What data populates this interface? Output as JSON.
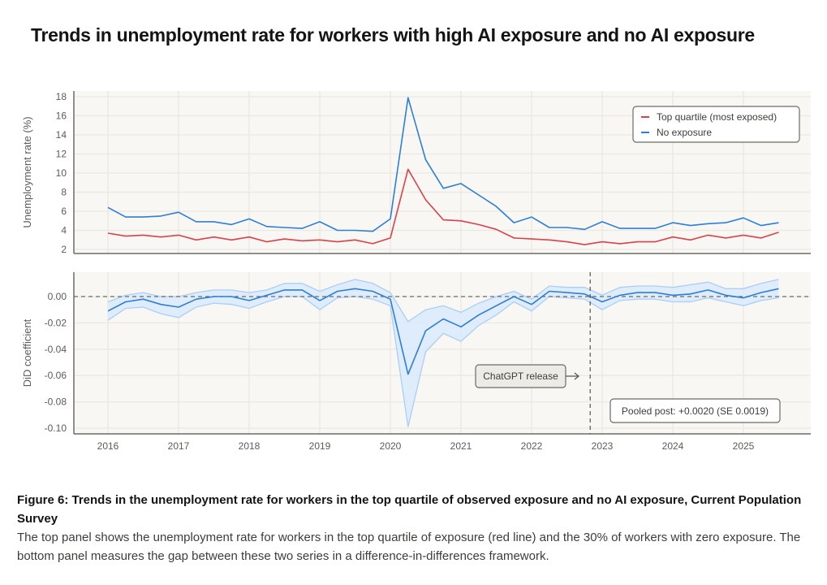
{
  "page": {
    "title": "Trends in unemployment rate for workers with high AI exposure and no AI exposure"
  },
  "caption": {
    "title": "Figure 6: Trends in the unemployment rate for workers in the top quartile of observed exposure and no AI exposure, Current Population Survey",
    "body": "The top panel shows the unemployment rate for workers in the top quartile of exposure (red line) and the 30% of workers with zero exposure. The bottom panel measures the gap between these two series in a difference-in-differences framework."
  },
  "colors": {
    "red": "#d9424a",
    "blue": "#2d7fd6",
    "band": "#dbeafb",
    "band_edge": "#a9cff5",
    "plot_bg": "#f8f7f4",
    "grid": "#ebe8e1",
    "axis": "#6b6b66",
    "tick_text": "#5b5b57"
  },
  "chart_data": [
    {
      "type": "line",
      "panel": "top",
      "title": "",
      "xlabel": "",
      "ylabel": "Unemployment rate (%)",
      "ylim": [
        2,
        18
      ],
      "yticks": [
        2,
        4,
        6,
        8,
        10,
        12,
        14,
        16,
        18
      ],
      "xlim": [
        2015.6,
        2026.0
      ],
      "grid": true,
      "legend": "top-right",
      "x": [
        2016.0,
        2016.25,
        2016.5,
        2016.75,
        2017.0,
        2017.25,
        2017.5,
        2017.75,
        2018.0,
        2018.25,
        2018.5,
        2018.75,
        2019.0,
        2019.25,
        2019.5,
        2019.75,
        2020.0,
        2020.25,
        2020.5,
        2020.75,
        2021.0,
        2021.25,
        2021.5,
        2021.75,
        2022.0,
        2022.25,
        2022.5,
        2022.75,
        2023.0,
        2023.25,
        2023.5,
        2023.75,
        2024.0,
        2024.25,
        2024.5,
        2024.75,
        2025.0,
        2025.25,
        2025.5
      ],
      "series": [
        {
          "name": "Top quartile (most exposed)",
          "color_key": "red",
          "values": [
            3.7,
            3.4,
            3.5,
            3.3,
            3.5,
            3.0,
            3.3,
            3.0,
            3.3,
            2.8,
            3.1,
            2.9,
            3.0,
            2.8,
            3.0,
            2.6,
            3.2,
            10.4,
            7.2,
            5.1,
            5.0,
            4.6,
            4.1,
            3.2,
            3.1,
            3.0,
            2.8,
            2.5,
            2.8,
            2.6,
            2.8,
            2.8,
            3.3,
            3.0,
            3.5,
            3.2,
            3.5,
            3.2,
            3.8
          ]
        },
        {
          "name": "No exposure",
          "color_key": "blue",
          "values": [
            6.4,
            5.4,
            5.4,
            5.5,
            5.9,
            4.9,
            4.9,
            4.6,
            5.2,
            4.4,
            4.3,
            4.2,
            4.9,
            4.0,
            4.0,
            3.9,
            5.2,
            17.9,
            11.4,
            8.4,
            8.9,
            7.7,
            6.5,
            4.8,
            5.4,
            4.3,
            4.3,
            4.1,
            4.9,
            4.2,
            4.2,
            4.2,
            4.8,
            4.5,
            4.7,
            4.8,
            5.3,
            4.5,
            4.8
          ]
        }
      ]
    },
    {
      "type": "line",
      "panel": "bottom",
      "title": "",
      "xlabel": "",
      "ylabel": "DiD coefficient",
      "ylim": [
        -0.1,
        0.02
      ],
      "yticks": [
        0.0,
        -0.02,
        -0.04,
        -0.06,
        -0.08,
        -0.1
      ],
      "ytick_labels": [
        "0.00",
        "-0.02",
        "-0.04",
        "-0.06",
        "-0.08",
        "-0.10"
      ],
      "xlim": [
        2015.6,
        2026.0
      ],
      "xticks": [
        2016,
        2017,
        2018,
        2019,
        2020,
        2021,
        2022,
        2023,
        2024,
        2025
      ],
      "grid": true,
      "reference_line_y": 0.0,
      "x": [
        2016.0,
        2016.25,
        2016.5,
        2016.75,
        2017.0,
        2017.25,
        2017.5,
        2017.75,
        2018.0,
        2018.25,
        2018.5,
        2018.75,
        2019.0,
        2019.25,
        2019.5,
        2019.75,
        2020.0,
        2020.25,
        2020.5,
        2020.75,
        2021.0,
        2021.25,
        2021.5,
        2021.75,
        2022.0,
        2022.25,
        2022.5,
        2022.75,
        2023.0,
        2023.25,
        2023.5,
        2023.75,
        2024.0,
        2024.25,
        2024.5,
        2024.75,
        2025.0,
        2025.25,
        2025.5
      ],
      "series": [
        {
          "name": "DiD coefficient",
          "color_key": "blue",
          "values": [
            -0.011,
            -0.004,
            -0.002,
            -0.006,
            -0.008,
            -0.002,
            0.0,
            0.0,
            -0.003,
            0.001,
            0.005,
            0.005,
            -0.003,
            0.004,
            0.006,
            0.004,
            -0.002,
            -0.059,
            -0.026,
            -0.017,
            -0.023,
            -0.014,
            -0.007,
            0.0,
            -0.006,
            0.004,
            0.003,
            0.002,
            -0.004,
            0.001,
            0.003,
            0.003,
            0.001,
            0.002,
            0.005,
            0.001,
            -0.001,
            0.003,
            0.006
          ],
          "ci_upper": [
            -0.004,
            0.001,
            0.003,
            0.0,
            0.0,
            0.003,
            0.005,
            0.005,
            0.003,
            0.005,
            0.01,
            0.01,
            0.004,
            0.009,
            0.013,
            0.01,
            0.003,
            -0.019,
            -0.01,
            -0.007,
            -0.012,
            -0.005,
            0.0,
            0.004,
            -0.002,
            0.008,
            0.007,
            0.007,
            0.001,
            0.007,
            0.008,
            0.008,
            0.007,
            0.009,
            0.011,
            0.006,
            0.006,
            0.01,
            0.013
          ],
          "ci_lower": [
            -0.018,
            -0.009,
            -0.008,
            -0.013,
            -0.016,
            -0.008,
            -0.005,
            -0.006,
            -0.009,
            -0.004,
            0.0,
            0.0,
            -0.01,
            -0.001,
            0.0,
            -0.002,
            -0.007,
            -0.099,
            -0.042,
            -0.028,
            -0.034,
            -0.022,
            -0.014,
            -0.004,
            -0.011,
            0.0,
            -0.001,
            -0.002,
            -0.01,
            -0.003,
            -0.002,
            -0.002,
            -0.004,
            -0.004,
            -0.001,
            -0.004,
            -0.007,
            -0.003,
            -0.001
          ]
        }
      ],
      "annotations": [
        {
          "id": "chatgpt",
          "text": "ChatGPT release",
          "x": 2022.83,
          "type": "vertical-line-with-label"
        },
        {
          "id": "pooled",
          "text": "Pooled post: +0.0020 (SE 0.0019)",
          "type": "text-box",
          "placement": "bottom-right"
        }
      ]
    }
  ]
}
